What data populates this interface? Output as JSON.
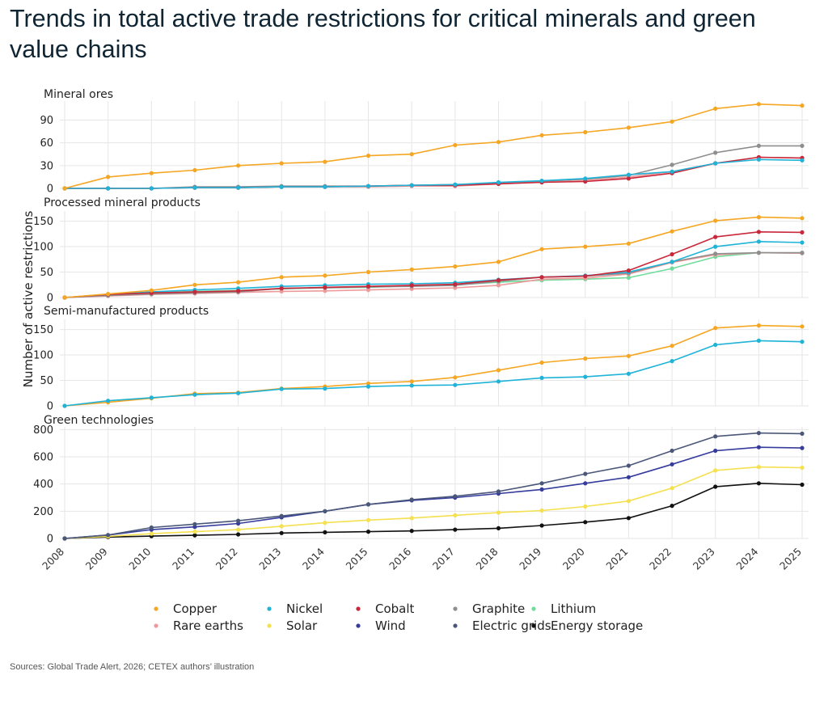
{
  "title": "Trends in total active trade restrictions for critical minerals and green value chains",
  "source": "Sources: Global Trade Alert, 2026; CETEX authors’ illustration",
  "colors": {
    "Copper": "#f5a623",
    "Nickel": "#1fb3d8",
    "Cobalt": "#c9273a",
    "Graphite": "#8e8e8e",
    "Lithium": "#6fdc9b",
    "Rare earths": "#ef9a9a",
    "Solar": "#f5e04f",
    "Wind": "#363c9c",
    "Electric grids": "#4a5778",
    "Energy storage": "#111111"
  },
  "chart_data": {
    "type": "line",
    "ylabel": "Number of active restrictions",
    "x": [
      2008,
      2009,
      2010,
      2011,
      2012,
      2013,
      2014,
      2015,
      2016,
      2017,
      2018,
      2019,
      2020,
      2021,
      2022,
      2023,
      2024,
      2025
    ],
    "grid": true,
    "legend_position": "bottom",
    "legend": [
      "Copper",
      "Nickel",
      "Cobalt",
      "Graphite",
      "Lithium",
      "Rare earths",
      "Solar",
      "Wind",
      "Electric grids",
      "Energy storage"
    ],
    "panels": [
      {
        "title": "Mineral ores",
        "ylim": [
          0,
          115
        ],
        "yticks": [
          0,
          30,
          60,
          90
        ],
        "series": [
          {
            "name": "Graphite",
            "values": [
              0,
              0,
              0,
              2,
              2,
              3,
              3,
              3,
              4,
              5,
              7,
              9,
              12,
              17,
              31,
              47,
              56,
              56
            ]
          },
          {
            "name": "Rare earths",
            "values": [
              0,
              0,
              0,
              1,
              1,
              2,
              2,
              2,
              3,
              3,
              6,
              8,
              10,
              15,
              22,
              33,
              41,
              40
            ]
          },
          {
            "name": "Cobalt",
            "values": [
              0,
              0,
              0,
              1,
              1,
              2,
              2,
              3,
              4,
              4,
              6,
              8,
              9,
              13,
              20,
              33,
              41,
              40
            ]
          },
          {
            "name": "Nickel",
            "values": [
              0,
              0,
              0,
              1,
              1,
              2,
              2,
              3,
              4,
              5,
              8,
              10,
              13,
              18,
              22,
              33,
              38,
              37
            ]
          },
          {
            "name": "Copper",
            "values": [
              0,
              15,
              20,
              24,
              30,
              33,
              35,
              43,
              45,
              57,
              61,
              70,
              74,
              80,
              88,
              105,
              111,
              109
            ]
          }
        ]
      },
      {
        "title": "Processed mineral products",
        "ylim": [
          0,
          170
        ],
        "yticks": [
          0,
          50,
          100,
          150
        ],
        "series": [
          {
            "name": "Lithium",
            "values": [
              0,
              5,
              9,
              12,
              14,
              17,
              19,
              20,
              23,
              25,
              30,
              34,
              36,
              39,
              57,
              80,
              88,
              87
            ]
          },
          {
            "name": "Rare earths",
            "values": [
              0,
              3,
              6,
              8,
              10,
              12,
              13,
              15,
              17,
              19,
              24,
              36,
              38,
              46,
              69,
              84,
              88,
              87
            ]
          },
          {
            "name": "Graphite",
            "values": [
              0,
              4,
              7,
              9,
              11,
              18,
              19,
              21,
              22,
              24,
              32,
              40,
              42,
              48,
              70,
              86,
              88,
              88
            ]
          },
          {
            "name": "Nickel",
            "values": [
              0,
              6,
              11,
              15,
              18,
              22,
              24,
              26,
              27,
              29,
              35,
              40,
              43,
              50,
              70,
              100,
              110,
              108
            ]
          },
          {
            "name": "Cobalt",
            "values": [
              0,
              6,
              9,
              11,
              13,
              18,
              20,
              22,
              24,
              26,
              34,
              40,
              42,
              53,
              85,
              119,
              129,
              128
            ]
          },
          {
            "name": "Copper",
            "values": [
              0,
              7,
              14,
              25,
              30,
              40,
              43,
              50,
              55,
              61,
              70,
              95,
              100,
              106,
              130,
              151,
              158,
              156
            ]
          }
        ]
      },
      {
        "title": "Semi-manufactured products",
        "ylim": [
          0,
          170
        ],
        "yticks": [
          0,
          50,
          100,
          150
        ],
        "series": [
          {
            "name": "Copper",
            "values": [
              0,
              7,
              15,
              24,
              26,
              34,
              38,
              44,
              48,
              56,
              70,
              85,
              93,
              98,
              118,
              153,
              158,
              156
            ]
          },
          {
            "name": "Nickel",
            "values": [
              0,
              10,
              16,
              22,
              25,
              33,
              34,
              38,
              40,
              41,
              48,
              55,
              57,
              63,
              88,
              120,
              128,
              126
            ]
          }
        ]
      },
      {
        "title": "Green technologies",
        "ylim": [
          0,
          820
        ],
        "yticks": [
          0,
          200,
          400,
          600,
          800
        ],
        "series": [
          {
            "name": "Energy storage",
            "values": [
              0,
              10,
              17,
              23,
              30,
              40,
              45,
              50,
              55,
              65,
              75,
              95,
              120,
              150,
              240,
              380,
              405,
              395
            ]
          },
          {
            "name": "Solar",
            "values": [
              0,
              15,
              35,
              50,
              65,
              90,
              115,
              135,
              150,
              170,
              190,
              205,
              235,
              275,
              370,
              500,
              525,
              520
            ]
          },
          {
            "name": "Wind",
            "values": [
              0,
              25,
              65,
              85,
              110,
              155,
              200,
              250,
              280,
              300,
              330,
              360,
              405,
              450,
              545,
              645,
              670,
              665
            ]
          },
          {
            "name": "Electric grids",
            "values": [
              0,
              25,
              80,
              105,
              130,
              165,
              200,
              250,
              285,
              310,
              345,
              405,
              475,
              535,
              645,
              750,
              775,
              770
            ]
          }
        ]
      }
    ]
  }
}
